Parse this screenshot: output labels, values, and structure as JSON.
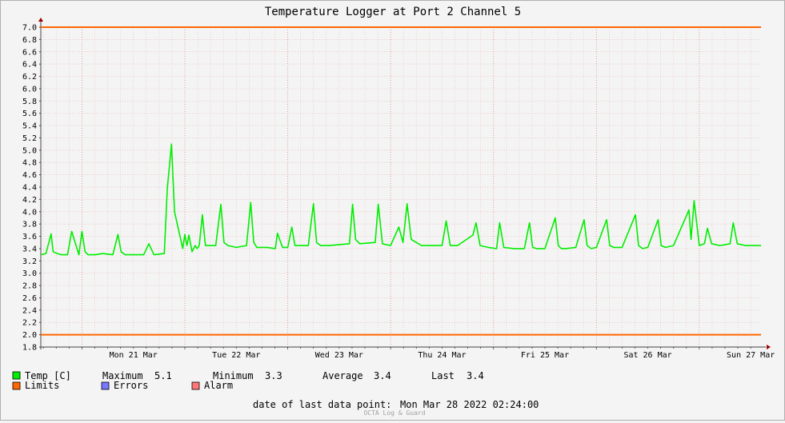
{
  "chart_data": {
    "type": "line",
    "title": "Temperature Logger at Port 2 Channel 5",
    "ylim": [
      1.8,
      7.0
    ],
    "y_ticks": [
      "1.8",
      "2.0",
      "2.2",
      "2.4",
      "2.6",
      "2.8",
      "3.0",
      "3.2",
      "3.4",
      "3.6",
      "3.8",
      "4.0",
      "4.2",
      "4.4",
      "4.6",
      "4.8",
      "5.0",
      "5.2",
      "5.4",
      "5.6",
      "5.8",
      "6.0",
      "6.2",
      "6.4",
      "6.6",
      "6.8",
      "7.0"
    ],
    "xlim_days": [
      20.6,
      27.6
    ],
    "x_tick_labels": [
      "Mon 21 Mar",
      "Tue 22 Mar",
      "Wed 23 Mar",
      "Thu 24 Mar",
      "Fri 25 Mar",
      "Sat 26 Mar",
      "Sun 27 Mar"
    ],
    "grid": true,
    "legend_position": "bottom",
    "colors": {
      "series": "#00ee00",
      "limits": "#ff6600",
      "errors": "#7777ff",
      "alarm": "#ff7777",
      "grid": "#e8b8b8",
      "axis": "#444444",
      "arrow": "#990000"
    },
    "limits": {
      "name": "Limits",
      "upper": 7.0,
      "lower": 2.0
    },
    "series": [
      {
        "name": "Temp [C]",
        "x": [
          20.6,
          20.65,
          20.7,
          20.72,
          20.76,
          20.8,
          20.86,
          20.9,
          20.97,
          21.0,
          21.03,
          21.06,
          21.1,
          21.13,
          21.2,
          21.3,
          21.35,
          21.38,
          21.42,
          21.5,
          21.6,
          21.65,
          21.7,
          21.8,
          21.83,
          21.87,
          21.9,
          21.98,
          22.0,
          22.02,
          22.04,
          22.07,
          22.1,
          22.12,
          22.14,
          22.17,
          22.2,
          22.3,
          22.35,
          22.38,
          22.42,
          22.5,
          22.6,
          22.64,
          22.67,
          22.7,
          22.8,
          22.88,
          22.9,
          22.95,
          23.0,
          23.04,
          23.07,
          23.1,
          23.2,
          23.25,
          23.28,
          23.32,
          23.4,
          23.6,
          23.63,
          23.66,
          23.7,
          23.85,
          23.88,
          23.92,
          24.0,
          24.08,
          24.12,
          24.16,
          24.2,
          24.3,
          24.5,
          24.54,
          24.58,
          24.65,
          24.8,
          24.83,
          24.87,
          24.95,
          25.03,
          25.06,
          25.1,
          25.2,
          25.3,
          25.35,
          25.38,
          25.42,
          25.5,
          25.6,
          25.63,
          25.66,
          25.7,
          25.8,
          25.88,
          25.91,
          25.95,
          26.0,
          26.1,
          26.13,
          26.17,
          26.25,
          26.38,
          26.41,
          26.45,
          26.5,
          26.6,
          26.63,
          26.67,
          26.75,
          26.9,
          26.92,
          26.95,
          27.0,
          27.05,
          27.08,
          27.12,
          27.2,
          27.3,
          27.33,
          27.37,
          27.45,
          27.55,
          27.58,
          27.62,
          27.6
        ],
        "values": [
          3.3,
          3.32,
          3.64,
          3.35,
          3.32,
          3.3,
          3.3,
          3.68,
          3.3,
          3.68,
          3.35,
          3.3,
          3.3,
          3.3,
          3.32,
          3.3,
          3.63,
          3.35,
          3.3,
          3.3,
          3.3,
          3.48,
          3.3,
          3.32,
          4.38,
          5.1,
          4.0,
          3.4,
          3.63,
          3.45,
          3.62,
          3.35,
          3.45,
          3.4,
          3.45,
          3.95,
          3.45,
          3.45,
          4.12,
          3.5,
          3.45,
          3.42,
          3.45,
          4.15,
          3.5,
          3.42,
          3.42,
          3.4,
          3.65,
          3.42,
          3.42,
          3.75,
          3.45,
          3.45,
          3.45,
          4.13,
          3.5,
          3.45,
          3.45,
          3.48,
          4.12,
          3.55,
          3.48,
          3.5,
          4.12,
          3.48,
          3.45,
          3.75,
          3.5,
          4.13,
          3.55,
          3.45,
          3.45,
          3.85,
          3.45,
          3.45,
          3.62,
          3.82,
          3.45,
          3.42,
          3.4,
          3.82,
          3.42,
          3.4,
          3.4,
          3.82,
          3.42,
          3.4,
          3.4,
          3.9,
          3.45,
          3.4,
          3.4,
          3.42,
          3.87,
          3.45,
          3.4,
          3.42,
          3.87,
          3.45,
          3.42,
          3.42,
          3.95,
          3.45,
          3.4,
          3.42,
          3.87,
          3.45,
          3.42,
          3.45,
          4.03,
          3.55,
          4.18,
          3.45,
          3.48,
          3.73,
          3.48,
          3.45,
          3.48,
          3.82,
          3.48,
          3.45,
          3.45,
          3.45,
          3.45,
          3.45
        ]
      }
    ]
  },
  "legend": {
    "temp_label": "Temp [C]",
    "max_label": "Maximum",
    "max_value": "5.1",
    "min_label": "Minimum",
    "min_value": "3.3",
    "avg_label": "Average",
    "avg_value": "3.4",
    "last_label": "Last",
    "last_value": "3.4",
    "limits_label": "Limits",
    "errors_label": "Errors",
    "alarm_label": "Alarm"
  },
  "footer": {
    "last_point_label": "date of last data point:",
    "last_point_value": "Mon Mar 28 2022 02:24:00",
    "credit": "OCTA Log & Guard"
  }
}
